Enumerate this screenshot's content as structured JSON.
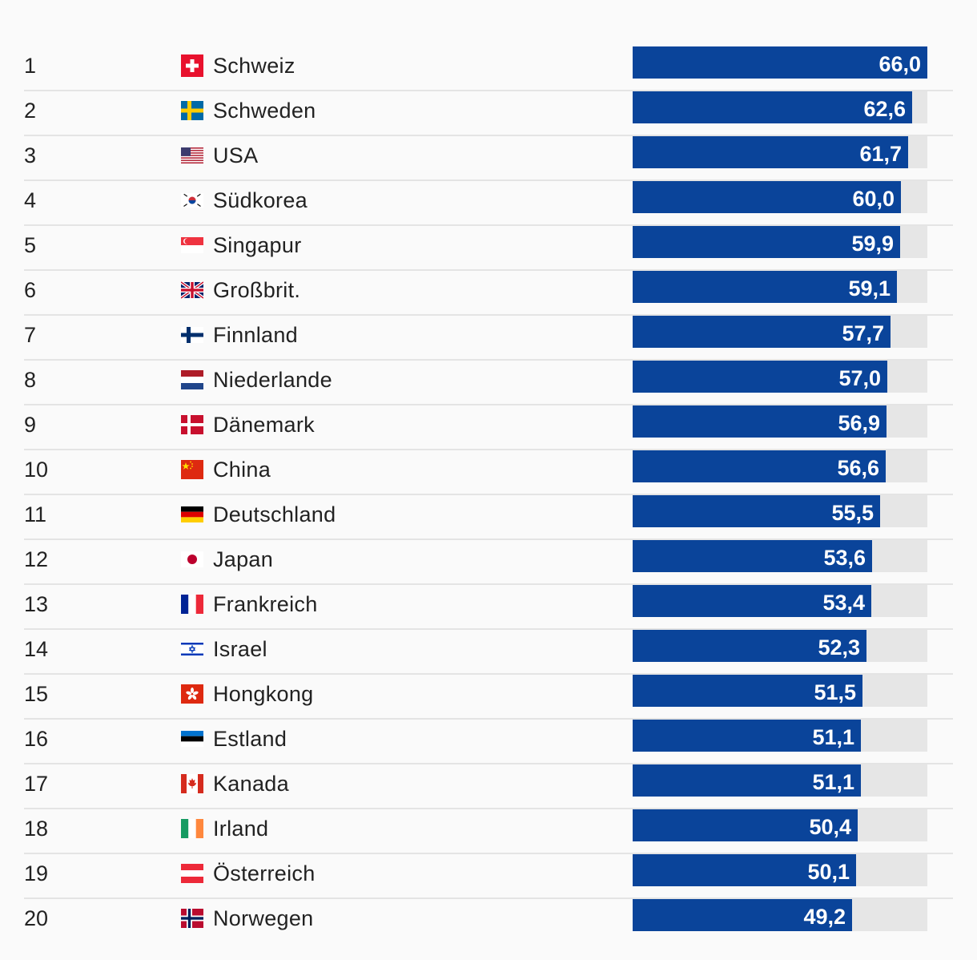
{
  "chart_data": {
    "type": "bar",
    "orientation": "horizontal",
    "title": "",
    "xlabel": "",
    "ylabel": "",
    "xlim": [
      0,
      66
    ],
    "bar_color": "#0a449a",
    "track_color": "#e6e6e6",
    "rows": [
      {
        "rank": "1",
        "country": "Schweiz",
        "flag": "switzerland-flag-icon",
        "value": 66.0,
        "label": "66,0"
      },
      {
        "rank": "2",
        "country": "Schweden",
        "flag": "sweden-flag-icon",
        "value": 62.6,
        "label": "62,6"
      },
      {
        "rank": "3",
        "country": "USA",
        "flag": "usa-flag-icon",
        "value": 61.7,
        "label": "61,7"
      },
      {
        "rank": "4",
        "country": "Südkorea",
        "flag": "south-korea-flag-icon",
        "value": 60.0,
        "label": "60,0"
      },
      {
        "rank": "5",
        "country": "Singapur",
        "flag": "singapore-flag-icon",
        "value": 59.9,
        "label": "59,9"
      },
      {
        "rank": "6",
        "country": "Großbrit.",
        "flag": "uk-flag-icon",
        "value": 59.1,
        "label": "59,1"
      },
      {
        "rank": "7",
        "country": "Finnland",
        "flag": "finland-flag-icon",
        "value": 57.7,
        "label": "57,7"
      },
      {
        "rank": "8",
        "country": "Niederlande",
        "flag": "netherlands-flag-icon",
        "value": 57.0,
        "label": "57,0"
      },
      {
        "rank": "9",
        "country": "Dänemark",
        "flag": "denmark-flag-icon",
        "value": 56.9,
        "label": "56,9"
      },
      {
        "rank": "10",
        "country": "China",
        "flag": "china-flag-icon",
        "value": 56.6,
        "label": "56,6"
      },
      {
        "rank": "11",
        "country": "Deutschland",
        "flag": "germany-flag-icon",
        "value": 55.5,
        "label": "55,5"
      },
      {
        "rank": "12",
        "country": "Japan",
        "flag": "japan-flag-icon",
        "value": 53.6,
        "label": "53,6"
      },
      {
        "rank": "13",
        "country": "Frankreich",
        "flag": "france-flag-icon",
        "value": 53.4,
        "label": "53,4"
      },
      {
        "rank": "14",
        "country": "Israel",
        "flag": "israel-flag-icon",
        "value": 52.3,
        "label": "52,3"
      },
      {
        "rank": "15",
        "country": "Hongkong",
        "flag": "hong-kong-flag-icon",
        "value": 51.5,
        "label": "51,5"
      },
      {
        "rank": "16",
        "country": "Estland",
        "flag": "estonia-flag-icon",
        "value": 51.1,
        "label": "51,1"
      },
      {
        "rank": "17",
        "country": "Kanada",
        "flag": "canada-flag-icon",
        "value": 51.1,
        "label": "51,1"
      },
      {
        "rank": "18",
        "country": "Irland",
        "flag": "ireland-flag-icon",
        "value": 50.4,
        "label": "50,4"
      },
      {
        "rank": "19",
        "country": "Österreich",
        "flag": "austria-flag-icon",
        "value": 50.1,
        "label": "50,1"
      },
      {
        "rank": "20",
        "country": "Norwegen",
        "flag": "norway-flag-icon",
        "value": 49.2,
        "label": "49,2"
      }
    ]
  }
}
